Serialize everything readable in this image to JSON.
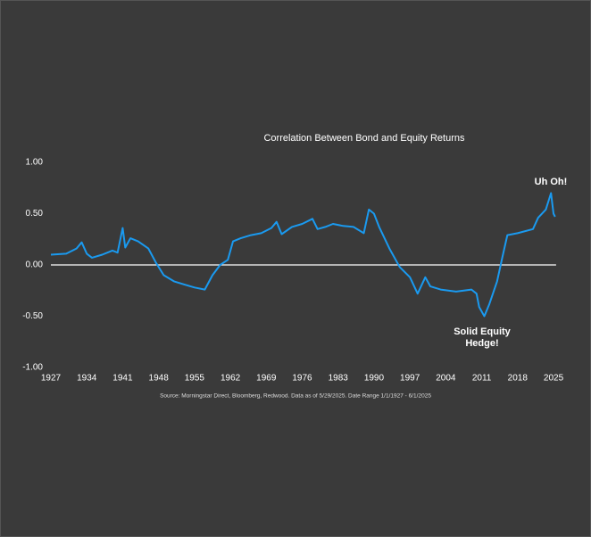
{
  "chart_data": {
    "type": "line",
    "title": "Correlation Between Bond and Equity Returns",
    "source": "Source: Morningstar Direct, Bloomberg, Redwood. Data as of 5/29/2025. Date Range 1/1/1927 - 6/1/2025",
    "annotations": [
      "Uh Oh!",
      "Solid Equity",
      "Hedge!"
    ],
    "color": "#1a9af0",
    "x": [
      1927,
      1930,
      1932,
      1933,
      1934,
      1935,
      1937,
      1939,
      1940,
      1941,
      1941.5,
      1942.5,
      1944,
      1946,
      1947.5,
      1949,
      1951,
      1953,
      1955,
      1957,
      1958.5,
      1960,
      1961.5,
      1962.5,
      1964,
      1966,
      1968,
      1970,
      1971,
      1972,
      1974,
      1976,
      1978,
      1979,
      1980.5,
      1982,
      1984,
      1986,
      1988,
      1989,
      1990,
      1991,
      1993,
      1995,
      1997,
      1998.5,
      2000,
      2001,
      2003,
      2006,
      2009,
      2010,
      2010.5,
      2011.5,
      2012.5,
      2014,
      2015,
      2016,
      2018,
      2021,
      2022,
      2023.5,
      2024.5,
      2025,
      2025.3
    ],
    "values": [
      0.1,
      0.11,
      0.16,
      0.22,
      0.11,
      0.07,
      0.1,
      0.14,
      0.12,
      0.36,
      0.17,
      0.26,
      0.23,
      0.16,
      0.02,
      -0.1,
      -0.16,
      -0.19,
      -0.22,
      -0.24,
      -0.1,
      0.0,
      0.05,
      0.23,
      0.26,
      0.29,
      0.31,
      0.36,
      0.42,
      0.3,
      0.37,
      0.4,
      0.45,
      0.35,
      0.37,
      0.4,
      0.38,
      0.37,
      0.31,
      0.54,
      0.5,
      0.37,
      0.16,
      -0.02,
      -0.12,
      -0.28,
      -0.12,
      -0.21,
      -0.24,
      -0.26,
      -0.24,
      -0.28,
      -0.41,
      -0.5,
      -0.38,
      -0.16,
      0.07,
      0.29,
      0.31,
      0.35,
      0.46,
      0.54,
      0.7,
      0.5,
      0.47
    ],
    "xlim": [
      1927,
      2025.5
    ],
    "xticks": [
      1927,
      1934,
      1941,
      1948,
      1955,
      1962,
      1969,
      1976,
      1983,
      1990,
      1997,
      2004,
      2011,
      2018,
      2025
    ],
    "ylim": [
      -1,
      1
    ],
    "yticks": [
      {
        "value": 1,
        "label": "1.00"
      },
      {
        "value": 0.5,
        "label": "0.50"
      },
      {
        "value": 0,
        "label": "0.00"
      },
      {
        "value": -0.5,
        "label": "-0.50"
      },
      {
        "value": -1,
        "label": "-1.00"
      }
    ],
    "zero_line": true
  }
}
